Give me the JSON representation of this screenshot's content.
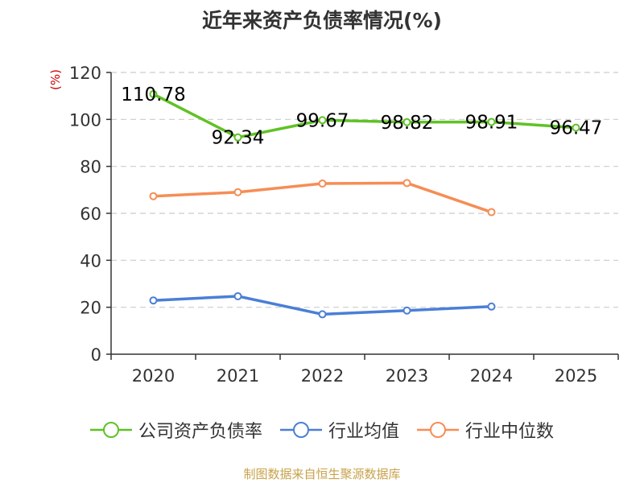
{
  "title": "近年来资产负债率情况(%)",
  "unit_label": "(%)",
  "source": "制图数据来自恒生聚源数据库",
  "colors": {
    "axis": "#333333",
    "grid": "#cccccc",
    "text": "#333333",
    "unit": "#cc0000",
    "source": "#c8a24b"
  },
  "chart_data": {
    "type": "line",
    "title": "近年来资产负债率情况(%)",
    "x": [
      "2020",
      "2021",
      "2022",
      "2023",
      "2024",
      "2025"
    ],
    "ylim": [
      0,
      120
    ],
    "yticks": [
      0,
      20,
      40,
      60,
      80,
      100,
      120
    ],
    "ylabel": "(%)",
    "grid": true,
    "legend_position": "bottom",
    "series": [
      {
        "name": "公司资产负债率",
        "color": "#5fc225",
        "values": [
          110.78,
          92.34,
          99.67,
          98.82,
          98.91,
          96.47
        ],
        "labels": [
          "110.78",
          "92.34",
          "99.67",
          "98.82",
          "98.91",
          "96.47"
        ],
        "show_labels": true
      },
      {
        "name": "行业均值",
        "color": "#4a7fd6",
        "values": [
          22.9,
          24.7,
          17.0,
          18.6,
          20.3,
          null
        ],
        "show_labels": false
      },
      {
        "name": "行业中位数",
        "color": "#f68d55",
        "values": [
          67.3,
          69.0,
          72.7,
          72.9,
          60.5,
          null
        ],
        "show_labels": false
      }
    ]
  }
}
